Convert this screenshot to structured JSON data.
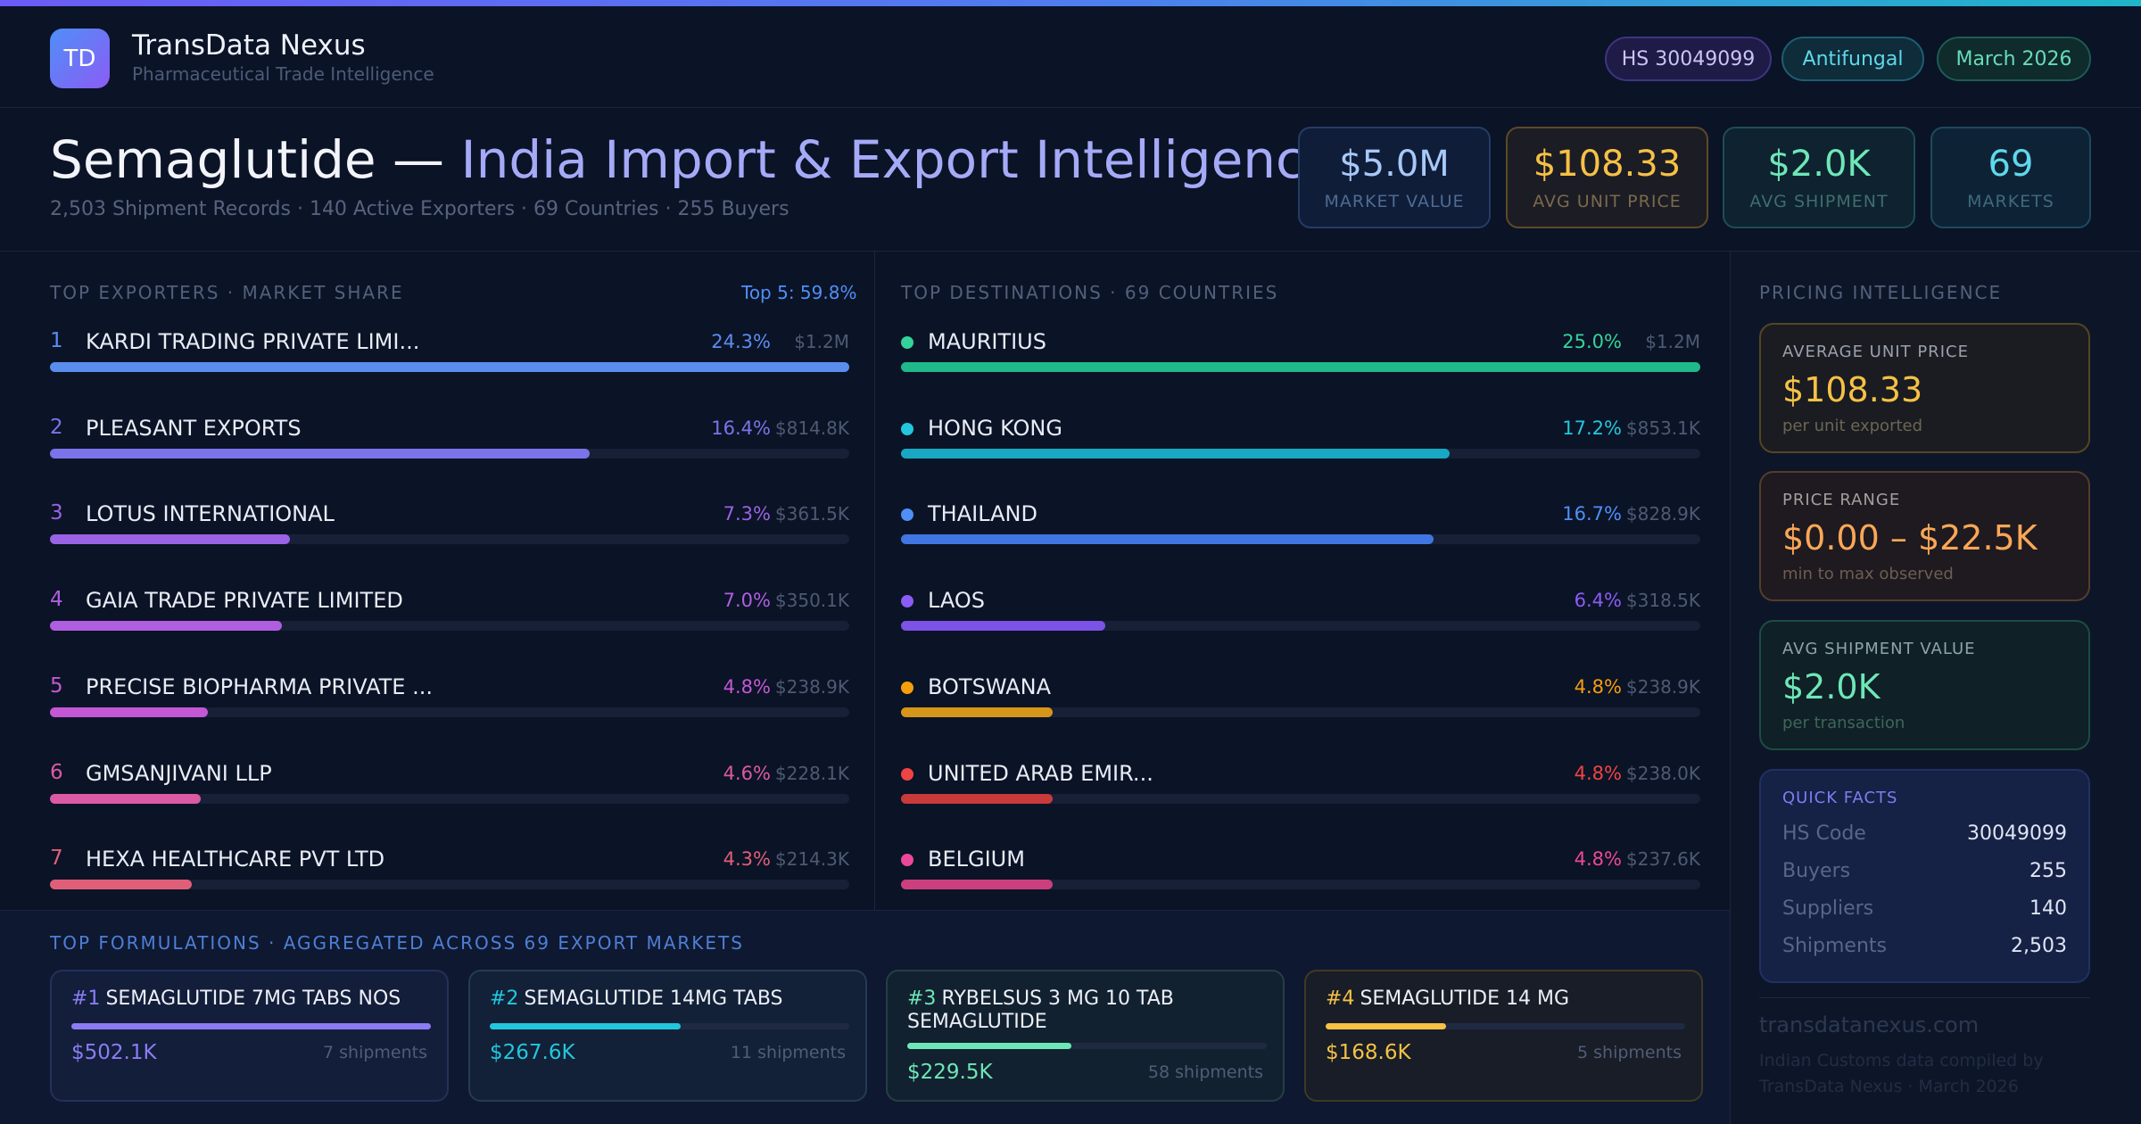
{
  "colors": {
    "violet": "#8b7cf6",
    "cyan": "#22c7dd",
    "green": "#6ee7b7",
    "gold": "#f6c145",
    "orange": "#fba756"
  },
  "brand": {
    "logo_text": "TD",
    "title": "TransData Nexus",
    "subtitle": "Pharmaceutical Trade Intelligence"
  },
  "tags": {
    "hs": "HS 30049099",
    "category": "Antifungal",
    "period": "March 2026"
  },
  "hero": {
    "title_main": "Semaglutide — ",
    "title_highlight": "India Import & Export Intelligence",
    "subtitle": "2,503 Shipment Records · 140 Active Exporters · 69 Countries · 255 Buyers"
  },
  "kpis": [
    {
      "value": "$5.0M",
      "label": "MARKET VALUE"
    },
    {
      "value": "$108.33",
      "label": "AVG UNIT PRICE"
    },
    {
      "value": "$2.0K",
      "label": "AVG SHIPMENT"
    },
    {
      "value": "69",
      "label": "MARKETS"
    }
  ],
  "exporters": {
    "label": "TOP EXPORTERS · MARKET SHARE",
    "top5": "Top 5: 59.8%",
    "items": [
      {
        "rank": "1",
        "name": "KARDI TRADING PRIVATE LIMI...",
        "pct": "24.3%",
        "amount": "$1.2M",
        "share": 1.0,
        "color": "#5b8def"
      },
      {
        "rank": "2",
        "name": "PLEASANT EXPORTS",
        "pct": "16.4%",
        "amount": "$814.8K",
        "share": 0.675,
        "color": "#7b73ea"
      },
      {
        "rank": "3",
        "name": "LOTUS INTERNATIONAL",
        "pct": "7.3%",
        "amount": "$361.5K",
        "share": 0.3,
        "color": "#9a62e4"
      },
      {
        "rank": "4",
        "name": "GAIA TRADE PRIVATE LIMITED",
        "pct": "7.0%",
        "amount": "$350.1K",
        "share": 0.29,
        "color": "#b05ee0"
      },
      {
        "rank": "5",
        "name": "PRECISE BIOPHARMA PRIVATE ...",
        "pct": "4.8%",
        "amount": "$238.9K",
        "share": 0.197,
        "color": "#c457d4"
      },
      {
        "rank": "6",
        "name": "GMSANJIVANI LLP",
        "pct": "4.6%",
        "amount": "$228.1K",
        "share": 0.189,
        "color": "#db5aa3"
      },
      {
        "rank": "7",
        "name": "HEXA HEALTHCARE PVT LTD",
        "pct": "4.3%",
        "amount": "$214.3K",
        "share": 0.177,
        "color": "#e05f78"
      }
    ]
  },
  "destinations": {
    "label": "TOP DESTINATIONS · 69 COUNTRIES",
    "items": [
      {
        "name": "MAURITIUS",
        "pct": "25.0%",
        "amount": "$1.2M",
        "share": 1.0,
        "color": "#1fb98a",
        "pct_color": "#34d399"
      },
      {
        "name": "HONG KONG",
        "pct": "17.2%",
        "amount": "$853.1K",
        "share": 0.686,
        "color": "#19a8c4",
        "pct_color": "#22c7dd"
      },
      {
        "name": "THAILAND",
        "pct": "16.7%",
        "amount": "$828.9K",
        "share": 0.666,
        "color": "#3f76e2",
        "pct_color": "#4f8ff7"
      },
      {
        "name": "LAOS",
        "pct": "6.4%",
        "amount": "$318.5K",
        "share": 0.256,
        "color": "#7d52e6",
        "pct_color": "#8b5cf6"
      },
      {
        "name": "BOTSWANA",
        "pct": "4.8%",
        "amount": "$238.9K",
        "share": 0.19,
        "color": "#d6961a",
        "pct_color": "#f59e0b"
      },
      {
        "name": "UNITED ARAB EMIR...",
        "pct": "4.8%",
        "amount": "$238.0K",
        "share": 0.19,
        "color": "#c93a3a",
        "pct_color": "#ef4444"
      },
      {
        "name": "BELGIUM",
        "pct": "4.8%",
        "amount": "$237.6K",
        "share": 0.19,
        "color": "#cc3f7e",
        "pct_color": "#ec4899"
      }
    ]
  },
  "pricing": {
    "label": "PRICING INTELLIGENCE",
    "cards": [
      {
        "label": "AVERAGE UNIT PRICE",
        "value": "$108.33",
        "sub": "per unit exported"
      },
      {
        "label": "PRICE RANGE",
        "value": "$0.00 – $22.5K",
        "sub": "min to max observed"
      },
      {
        "label": "AVG SHIPMENT VALUE",
        "value": "$2.0K",
        "sub": "per transaction"
      }
    ],
    "quick_facts": {
      "title": "QUICK FACTS",
      "rows": [
        {
          "key": "HS Code",
          "value": "30049099"
        },
        {
          "key": "Buyers",
          "value": "255"
        },
        {
          "key": "Suppliers",
          "value": "140"
        },
        {
          "key": "Shipments",
          "value": "2,503"
        }
      ]
    },
    "site": "transdatanexus.com",
    "footnote": "Indian Customs data compiled by TransData Nexus · March 2026"
  },
  "formulations": {
    "label": "TOP FORMULATIONS · AGGREGATED ACROSS 69 EXPORT MARKETS",
    "items": [
      {
        "num": "#1",
        "name": "SEMAGLUTIDE 7MG TABS NOS",
        "value": "$502.1K",
        "shipments": "7 shipments",
        "share": 1.0,
        "color": "#8b7cf6"
      },
      {
        "num": "#2",
        "name": "SEMAGLUTIDE 14MG TABS",
        "value": "$267.6K",
        "shipments": "11 shipments",
        "share": 0.53,
        "color": "#22c7dd"
      },
      {
        "num": "#3",
        "name": "RYBELSUS 3 MG 10 TAB SEMAGLUTIDE",
        "value": "$229.5K",
        "shipments": "58 shipments",
        "share": 0.457,
        "color": "#6ee7b7"
      },
      {
        "num": "#4",
        "name": "SEMAGLUTIDE 14 MG",
        "value": "$168.6K",
        "shipments": "5 shipments",
        "share": 0.335,
        "color": "#f6c145"
      }
    ]
  }
}
